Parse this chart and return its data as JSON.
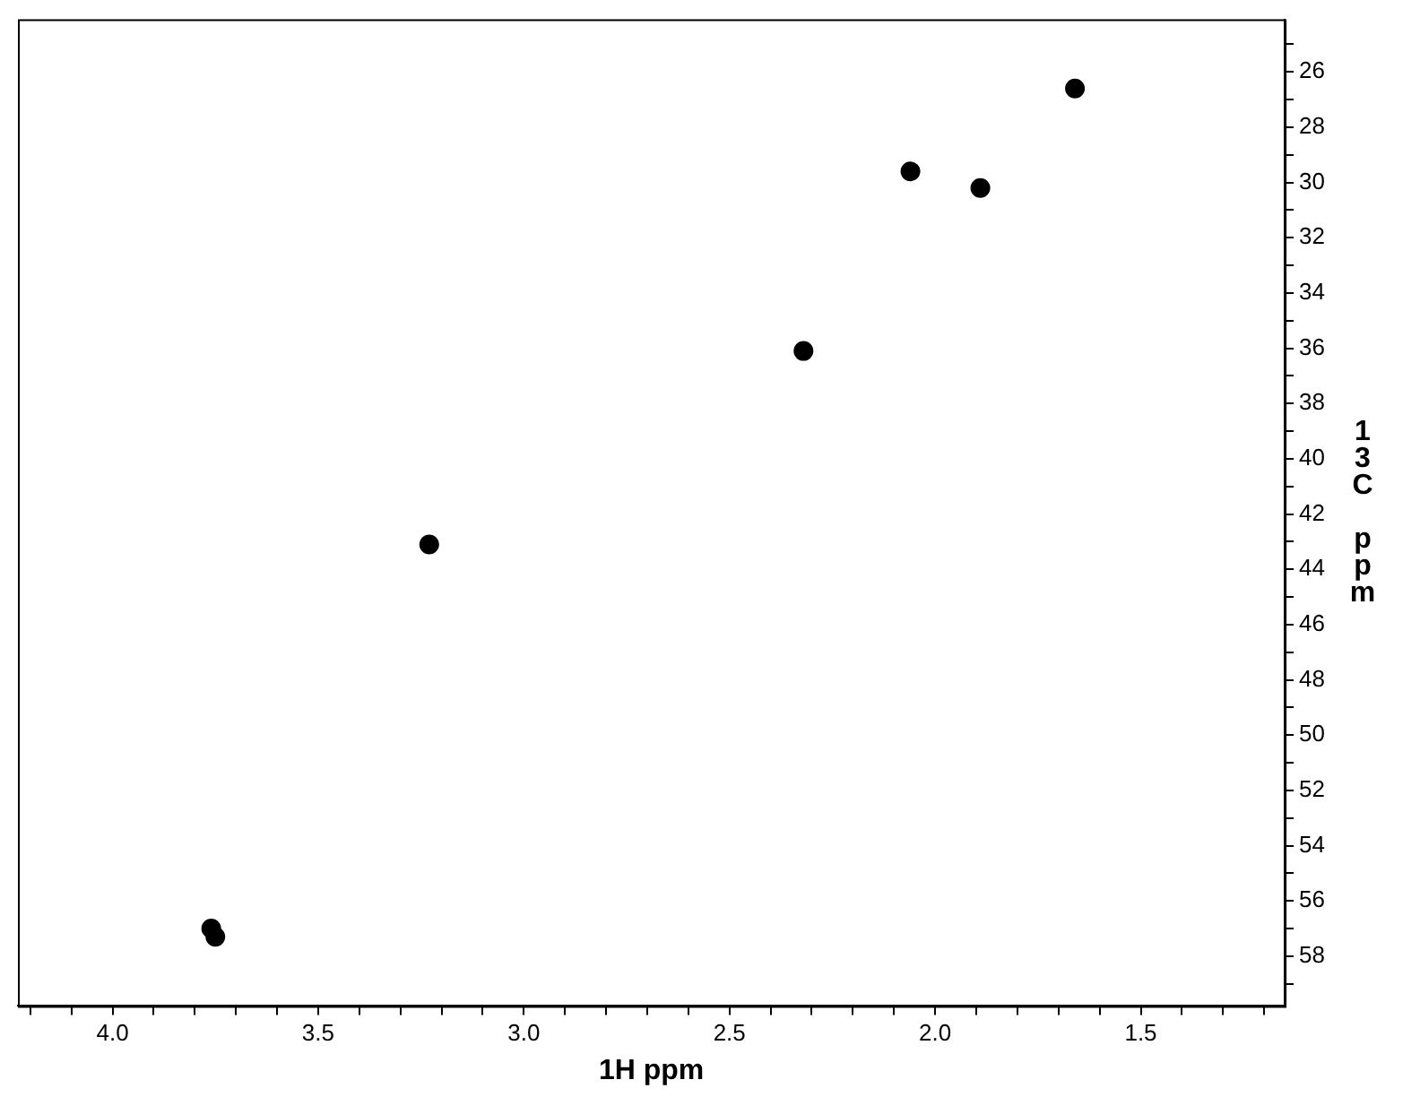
{
  "chart_data": {
    "type": "scatter",
    "xlabel": "1H ppm",
    "ylabel": "13C ppm",
    "x": [
      1.66,
      2.06,
      1.89,
      2.32,
      3.23,
      3.76,
      3.75
    ],
    "values": [
      26.6,
      29.6,
      30.2,
      36.1,
      43.1,
      57.0,
      57.3
    ],
    "color": "#000000",
    "marker": "circle",
    "xlim": [
      4.23,
      1.15
    ],
    "ylim": [
      59.8,
      24.1
    ],
    "xticks": [
      {
        "value": 4.2,
        "label": null
      },
      {
        "value": 4.1,
        "label": null
      },
      {
        "value": 4.0,
        "label": "4.0"
      },
      {
        "value": 3.9,
        "label": null
      },
      {
        "value": 3.8,
        "label": null
      },
      {
        "value": 3.7,
        "label": null
      },
      {
        "value": 3.6,
        "label": null
      },
      {
        "value": 3.5,
        "label": "3.5"
      },
      {
        "value": 3.4,
        "label": null
      },
      {
        "value": 3.3,
        "label": null
      },
      {
        "value": 3.2,
        "label": null
      },
      {
        "value": 3.1,
        "label": null
      },
      {
        "value": 3.0,
        "label": "3.0"
      },
      {
        "value": 2.9,
        "label": null
      },
      {
        "value": 2.8,
        "label": null
      },
      {
        "value": 2.7,
        "label": null
      },
      {
        "value": 2.6,
        "label": null
      },
      {
        "value": 2.5,
        "label": "2.5"
      },
      {
        "value": 2.4,
        "label": null
      },
      {
        "value": 2.3,
        "label": null
      },
      {
        "value": 2.2,
        "label": null
      },
      {
        "value": 2.1,
        "label": null
      },
      {
        "value": 2.0,
        "label": "2.0"
      },
      {
        "value": 1.9,
        "label": null
      },
      {
        "value": 1.8,
        "label": null
      },
      {
        "value": 1.7,
        "label": null
      },
      {
        "value": 1.6,
        "label": null
      },
      {
        "value": 1.5,
        "label": "1.5"
      },
      {
        "value": 1.4,
        "label": null
      },
      {
        "value": 1.3,
        "label": null
      },
      {
        "value": 1.2,
        "label": null
      }
    ],
    "yticks": [
      {
        "value": 25,
        "label": null
      },
      26,
      {
        "value": 27,
        "label": null
      },
      28,
      {
        "value": 29,
        "label": null
      },
      30,
      {
        "value": 31,
        "label": null
      },
      32,
      {
        "value": 33,
        "label": null
      },
      34,
      {
        "value": 35,
        "label": null
      },
      36,
      {
        "value": 37,
        "label": null
      },
      38,
      {
        "value": 39,
        "label": null
      },
      40,
      {
        "value": 41,
        "label": null
      },
      42,
      {
        "value": 43,
        "label": null
      },
      44,
      {
        "value": 45,
        "label": null
      },
      46,
      {
        "value": 47,
        "label": null
      },
      48,
      {
        "value": 49,
        "label": null
      },
      50,
      {
        "value": 51,
        "label": null
      },
      52,
      {
        "value": 53,
        "label": null
      },
      54,
      {
        "value": 55,
        "label": null
      },
      56,
      {
        "value": 57,
        "label": null
      },
      58,
      {
        "value": 59,
        "label": null
      }
    ],
    "grid": false,
    "legend": false
  }
}
